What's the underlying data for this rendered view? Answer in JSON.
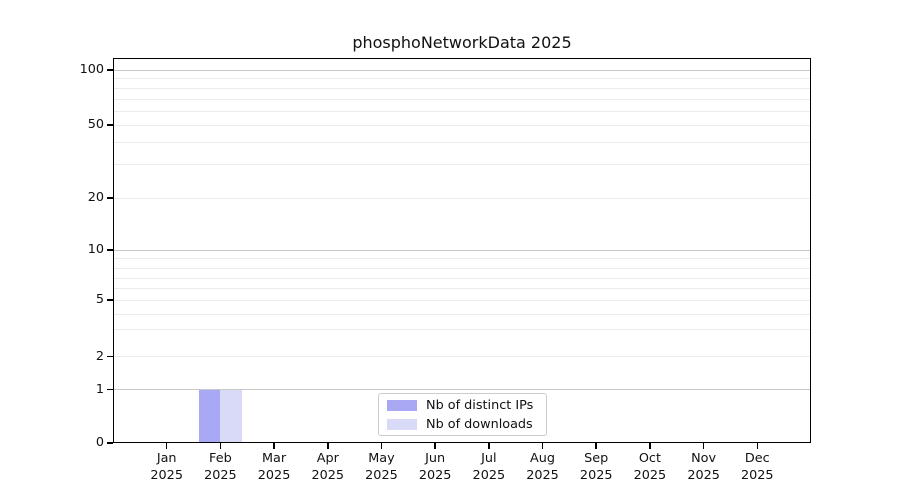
{
  "chart_data": {
    "type": "bar",
    "title": "phosphoNetworkData 2025",
    "categories": [
      "Jan",
      "Feb",
      "Mar",
      "Apr",
      "May",
      "Jun",
      "Jul",
      "Aug",
      "Sep",
      "Oct",
      "Nov",
      "Dec"
    ],
    "category_year": "2025",
    "series": [
      {
        "name": "Nb of distinct IPs",
        "color": "#a8a8f5",
        "values": [
          0,
          1,
          0,
          0,
          0,
          0,
          0,
          0,
          0,
          0,
          0,
          0
        ]
      },
      {
        "name": "Nb of downloads",
        "color": "#d9d9f8",
        "values": [
          0,
          1,
          0,
          0,
          0,
          0,
          0,
          0,
          0,
          0,
          0,
          0
        ]
      }
    ],
    "xlabel": "",
    "ylabel": "",
    "yscale": "log-like",
    "ylim": [
      0,
      100
    ],
    "ytick_labels": [
      "0",
      "1",
      "2",
      "5",
      "10",
      "20",
      "50",
      "100"
    ],
    "ytick_values": [
      0,
      1,
      2,
      5,
      10,
      20,
      50,
      100
    ],
    "major_grid_values": [
      1,
      10,
      100
    ],
    "minor_grid_values": [
      2,
      3,
      4,
      5,
      6,
      7,
      8,
      9,
      20,
      30,
      40,
      50,
      60,
      70,
      80,
      90
    ],
    "grid": true,
    "legend": {
      "position": "bottom-center",
      "items": [
        "Nb of distinct IPs",
        "Nb of downloads"
      ]
    }
  },
  "colors": {
    "bar_distinct_ips": "#a8a8f5",
    "bar_downloads": "#d9d9f8",
    "major_grid": "#c9c9c9",
    "minor_grid": "#ebebeb",
    "axis": "#000000",
    "legend_border": "#cccccc",
    "background": "#ffffff"
  }
}
